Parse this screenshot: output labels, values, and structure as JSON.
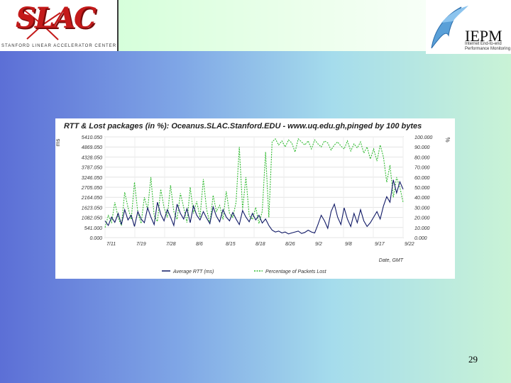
{
  "header": {
    "slac_logo_text": "SLAC",
    "slac_logo_subtitle": "STANFORD LINEAR ACCELERATOR CENTER",
    "iepm_logo_text": "IEPM",
    "iepm_logo_subtitle": "Internet End-to-end Performance Monitoring"
  },
  "slide_number": "29",
  "colors": {
    "rtt_series": "#111a66",
    "loss_series": "#33bb33"
  },
  "chart_data": {
    "type": "line",
    "title": "RTT & Lost packages (in %): Oceanus.SLAC.Stanford.EDU - www.uq.edu.gh,pinged by 100 bytes",
    "xlabel": "Date, GMT",
    "ylabel_left": "ms",
    "ylabel_right": "%",
    "x_ticks": [
      "7/11",
      "7/19",
      "7/28",
      "8/6",
      "8/15",
      "8/18",
      "8/26",
      "9/2",
      "9/8",
      "9/17",
      "9/22"
    ],
    "y_left_ticks": [
      "0.000",
      "541.000",
      "1082.050",
      "1623.050",
      "2164.050",
      "2705.050",
      "3246.050",
      "3787.050",
      "4328.050",
      "4869.050",
      "5410.050"
    ],
    "y_right_ticks": [
      "0.000",
      "10.000",
      "20.000",
      "30.000",
      "40.000",
      "50.000",
      "60.000",
      "70.000",
      "80.000",
      "90.000",
      "100.000"
    ],
    "ylim_left": [
      0,
      5410.05
    ],
    "ylim_right": [
      0,
      100
    ],
    "legend": "bottom",
    "grid": true,
    "series": [
      {
        "name": "Average RTT (ms)",
        "axis": "left",
        "style": "solid",
        "values": [
          900,
          650,
          1100,
          820,
          1300,
          700,
          1500,
          950,
          1200,
          600,
          1400,
          1000,
          800,
          1600,
          1100,
          700,
          1900,
          1250,
          900,
          1500,
          1100,
          650,
          1800,
          1300,
          1000,
          1550,
          800,
          1700,
          1200,
          950,
          1400,
          1050,
          750,
          1650,
          1150,
          850,
          1500,
          1100,
          900,
          1350,
          1000,
          700,
          1450,
          1100,
          850,
          1300,
          950,
          1200,
          780,
          1000,
          650,
          400,
          300,
          350,
          250,
          300,
          200,
          250,
          300,
          350,
          220,
          280,
          400,
          300,
          250,
          700,
          1200,
          900,
          500,
          1400,
          1800,
          1100,
          700,
          1600,
          1000,
          600,
          1300,
          800,
          1500,
          900,
          600,
          800,
          1100,
          1400,
          1000,
          1700,
          2200,
          1900,
          3100,
          2400,
          3000,
          2600
        ]
      },
      {
        "name": "Percentage of Packets Lost",
        "axis": "right",
        "style": "dotted",
        "values": [
          10,
          22,
          15,
          35,
          20,
          12,
          45,
          30,
          18,
          55,
          25,
          14,
          40,
          28,
          60,
          22,
          16,
          48,
          30,
          20,
          52,
          26,
          18,
          44,
          30,
          15,
          50,
          24,
          36,
          20,
          58,
          28,
          14,
          42,
          26,
          32,
          18,
          46,
          24,
          20,
          35,
          90,
          28,
          60,
          22,
          18,
          30,
          14,
          26,
          85,
          20,
          95,
          98,
          92,
          96,
          90,
          97,
          94,
          85,
          98,
          95,
          92,
          96,
          88,
          97,
          93,
          90,
          96,
          94,
          87,
          92,
          95,
          91,
          88,
          96,
          86,
          93,
          89,
          95,
          84,
          90,
          78,
          88,
          76,
          92,
          80,
          55,
          72,
          40,
          60,
          50,
          35
        ]
      }
    ]
  }
}
